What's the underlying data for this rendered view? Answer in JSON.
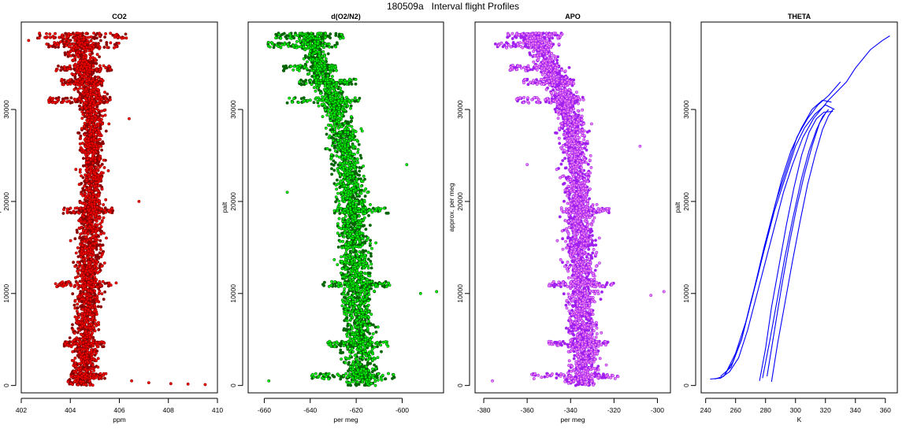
{
  "page_title": "180509a   Interval flight Profiles",
  "colors": {
    "co2_point": "#ff0000",
    "co2_edge": "#8b0000",
    "o2n2_point": "#00ff00",
    "o2n2_edge": "#006400",
    "apo_point": "#ee82ee",
    "apo_edge": "#a020f0",
    "theta_line": "#0000ff"
  },
  "chart_data": [
    {
      "type": "scatter",
      "title": "CO2",
      "xlabel": "ppm",
      "ylabel": "palt",
      "xlim": [
        402,
        410
      ],
      "ylim": [
        -800,
        39500
      ],
      "xticks": [
        "402",
        "404",
        "406",
        "408",
        "410"
      ],
      "yticks": [
        "0",
        "10000",
        "20000",
        "30000"
      ],
      "profile": {
        "palt": [
          500,
          2000,
          5000,
          8000,
          11000,
          14000,
          17000,
          20000,
          23000,
          26000,
          29000,
          31000,
          33000,
          35000,
          37000,
          38000
        ],
        "center": [
          404.5,
          404.6,
          404.6,
          404.7,
          404.7,
          404.8,
          404.8,
          404.9,
          404.9,
          404.9,
          404.9,
          404.9,
          404.7,
          404.6,
          404.4,
          404.3
        ],
        "spread": [
          0.9,
          0.9,
          0.9,
          0.9,
          0.9,
          0.9,
          0.9,
          0.8,
          0.8,
          0.8,
          0.8,
          1.0,
          1.0,
          1.0,
          1.3,
          1.5
        ]
      },
      "bands": [
        {
          "palt": 38000,
          "from": 402.6,
          "to": 406.3
        },
        {
          "palt": 37000,
          "from": 403.0,
          "to": 406.0
        },
        {
          "palt": 34500,
          "from": 403.4,
          "to": 405.7
        },
        {
          "palt": 33000,
          "from": 403.6,
          "to": 405.4
        },
        {
          "palt": 31000,
          "from": 403.1,
          "to": 405.6
        },
        {
          "palt": 19000,
          "from": 403.7,
          "to": 405.8
        },
        {
          "palt": 11000,
          "from": 403.4,
          "to": 405.9
        },
        {
          "palt": 4500,
          "from": 403.7,
          "to": 405.4
        },
        {
          "palt": 1000,
          "from": 404.0,
          "to": 405.5
        }
      ],
      "outliers": [
        [
          406.5,
          500
        ],
        [
          407.2,
          300
        ],
        [
          408.1,
          200
        ],
        [
          408.8,
          150
        ],
        [
          409.5,
          100
        ],
        [
          406.8,
          20000
        ],
        [
          406.4,
          29000
        ],
        [
          402.3,
          37500
        ]
      ]
    },
    {
      "type": "scatter",
      "title": "d(O2/N2)",
      "xlabel": "per meg",
      "ylabel": "palt",
      "xlim": [
        -667,
        -582
      ],
      "ylim": [
        -800,
        39500
      ],
      "xticks": [
        "-660",
        "-640",
        "-620",
        "-600"
      ],
      "yticks": [
        "0",
        "10000",
        "20000",
        "30000"
      ],
      "profile": {
        "palt": [
          500,
          2000,
          5000,
          8000,
          11000,
          14000,
          17000,
          20000,
          23000,
          26000,
          29000,
          31000,
          33000,
          35000,
          37000,
          38000
        ],
        "center": [
          -618,
          -618,
          -619,
          -619,
          -620,
          -620,
          -621,
          -622,
          -623,
          -625,
          -627,
          -630,
          -633,
          -636,
          -639,
          -640
        ],
        "spread": [
          13,
          13,
          12,
          12,
          12,
          12,
          11,
          11,
          11,
          11,
          11,
          11,
          10,
          10,
          10,
          10
        ]
      },
      "bands": [
        {
          "palt": 38000,
          "from": -655,
          "to": -625
        },
        {
          "palt": 37000,
          "from": -660,
          "to": -628
        },
        {
          "palt": 34500,
          "from": -652,
          "to": -628
        },
        {
          "palt": 33000,
          "from": -645,
          "to": -620
        },
        {
          "palt": 31000,
          "from": -650,
          "to": -618
        },
        {
          "palt": 19000,
          "from": -630,
          "to": -606
        },
        {
          "palt": 11000,
          "from": -635,
          "to": -605
        },
        {
          "palt": 4500,
          "from": -633,
          "to": -606
        },
        {
          "palt": 1000,
          "from": -640,
          "to": -603
        }
      ],
      "outliers": [
        [
          -585,
          10200
        ],
        [
          -592,
          10000
        ],
        [
          -658,
          500
        ],
        [
          -650,
          21000
        ],
        [
          -598,
          24000
        ]
      ]
    },
    {
      "type": "scatter",
      "title": "APO",
      "xlabel": "",
      "ylabel": "approx. per meg",
      "xlim": [
        -384,
        -294
      ],
      "ylim": [
        -800,
        39500
      ],
      "xticks": [
        "-380",
        "-360",
        "-340",
        "-320",
        "-300"
      ],
      "yticks": [
        "0",
        "10000",
        "20000",
        "30000"
      ],
      "profile": {
        "palt": [
          500,
          2000,
          5000,
          8000,
          11000,
          14000,
          17000,
          20000,
          23000,
          26000,
          29000,
          31000,
          33000,
          35000,
          37000,
          38000
        ],
        "center": [
          -334,
          -334,
          -334,
          -335,
          -335,
          -335,
          -336,
          -336,
          -337,
          -338,
          -340,
          -342,
          -346,
          -350,
          -355,
          -357
        ],
        "spread": [
          13,
          13,
          12,
          12,
          12,
          12,
          12,
          11,
          11,
          11,
          11,
          11,
          11,
          10,
          10,
          10
        ]
      },
      "bands": [
        {
          "palt": 38000,
          "from": -370,
          "to": -343
        },
        {
          "palt": 37000,
          "from": -375,
          "to": -345
        },
        {
          "palt": 34500,
          "from": -368,
          "to": -345
        },
        {
          "palt": 33000,
          "from": -362,
          "to": -338
        },
        {
          "palt": 31000,
          "from": -365,
          "to": -335
        },
        {
          "palt": 19000,
          "from": -345,
          "to": -322
        },
        {
          "palt": 11000,
          "from": -350,
          "to": -320
        },
        {
          "palt": 4500,
          "from": -350,
          "to": -322
        },
        {
          "palt": 1000,
          "from": -358,
          "to": -318
        }
      ],
      "outliers": [
        [
          -297,
          10200
        ],
        [
          -303,
          9800
        ],
        [
          -376,
          500
        ],
        [
          -360,
          24000
        ],
        [
          -308,
          26000
        ]
      ]
    },
    {
      "type": "line",
      "title": "THETA",
      "xlabel": "K",
      "ylabel": "palt",
      "xlim": [
        237,
        368
      ],
      "ylim": [
        -800,
        39500
      ],
      "xticks": [
        "240",
        "260",
        "280",
        "300",
        "320",
        "340",
        "360"
      ],
      "yticks": [
        "0",
        "10000",
        "20000",
        "30000"
      ],
      "series": [
        {
          "x": [
            243,
            250,
            256,
            262,
            268,
            276,
            284,
            292,
            298,
            305,
            312,
            318,
            322,
            328,
            334,
            340,
            350,
            358,
            363
          ],
          "palt": [
            700,
            800,
            1500,
            3000,
            6000,
            11000,
            16000,
            21000,
            24000,
            27000,
            29000,
            30200,
            31000,
            32000,
            33000,
            34500,
            36500,
            37500,
            38000
          ]
        },
        {
          "x": [
            246,
            252,
            258,
            264,
            270,
            278,
            286,
            294,
            300,
            306,
            313,
            320,
            326
          ],
          "palt": [
            700,
            1000,
            2500,
            5000,
            9000,
            14000,
            19000,
            23000,
            26000,
            28000,
            29500,
            30500,
            30000
          ]
        },
        {
          "x": [
            250,
            257,
            264,
            271,
            279,
            287,
            295,
            301,
            308,
            315,
            322,
            330
          ],
          "palt": [
            1000,
            2000,
            5000,
            9500,
            15000,
            20000,
            24000,
            27000,
            29000,
            30500,
            31500,
            33000
          ]
        },
        {
          "x": [
            253,
            260,
            267,
            275,
            283,
            291,
            297,
            304,
            311,
            318,
            324
          ],
          "palt": [
            1200,
            3500,
            7000,
            12000,
            17500,
            22500,
            25500,
            28000,
            30000,
            31000,
            30800
          ]
        },
        {
          "x": [
            276,
            280,
            284,
            289,
            294,
            299,
            304,
            309,
            314,
            319,
            325
          ],
          "palt": [
            500,
            4000,
            8500,
            13000,
            17500,
            21500,
            25000,
            27500,
            29000,
            29700,
            29800
          ]
        },
        {
          "x": [
            278,
            283,
            288,
            293,
            298,
            304,
            309,
            314,
            318,
            322
          ],
          "palt": [
            800,
            5000,
            9500,
            14000,
            18000,
            22500,
            25500,
            27800,
            29200,
            30000
          ]
        },
        {
          "x": [
            281,
            286,
            291,
            296,
            301,
            306,
            311,
            316,
            320
          ],
          "palt": [
            1000,
            6000,
            11000,
            15500,
            19500,
            23000,
            26000,
            28500,
            29600
          ]
        },
        {
          "x": [
            284,
            288,
            293,
            298,
            303,
            308,
            313,
            318,
            322,
            325
          ],
          "palt": [
            400,
            4500,
            9000,
            13500,
            17800,
            21800,
            25000,
            27800,
            29300,
            30000
          ]
        }
      ]
    }
  ],
  "extra_xlabel_apo": "per meg"
}
